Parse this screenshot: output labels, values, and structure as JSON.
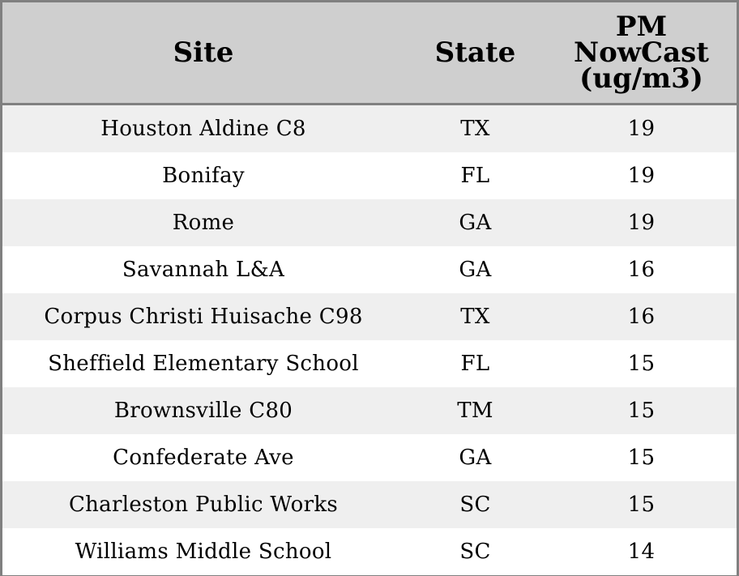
{
  "table": {
    "headers": {
      "site": "Site",
      "state": "State",
      "pm_line1": "PM",
      "pm_line2": "NowCast",
      "pm_line3": "(ug/m3)"
    },
    "rows": [
      {
        "site": "Houston Aldine C8",
        "state": "TX",
        "pm": "19"
      },
      {
        "site": "Bonifay",
        "state": "FL",
        "pm": "19"
      },
      {
        "site": "Rome",
        "state": "GA",
        "pm": "19"
      },
      {
        "site": "Savannah L&A",
        "state": "GA",
        "pm": "16"
      },
      {
        "site": "Corpus Christi Huisache C98",
        "state": "TX",
        "pm": "16"
      },
      {
        "site": "Sheffield Elementary School",
        "state": "FL",
        "pm": "15"
      },
      {
        "site": "Brownsville C80",
        "state": "TM",
        "pm": "15"
      },
      {
        "site": "Confederate Ave",
        "state": "GA",
        "pm": "15"
      },
      {
        "site": "Charleston Public Works",
        "state": "SC",
        "pm": "15"
      },
      {
        "site": "Williams Middle School",
        "state": "SC",
        "pm": "14"
      }
    ]
  },
  "colors": {
    "header_bg": "#cfcfcf",
    "row_alt_bg": "#efefef",
    "border": "#808080"
  }
}
